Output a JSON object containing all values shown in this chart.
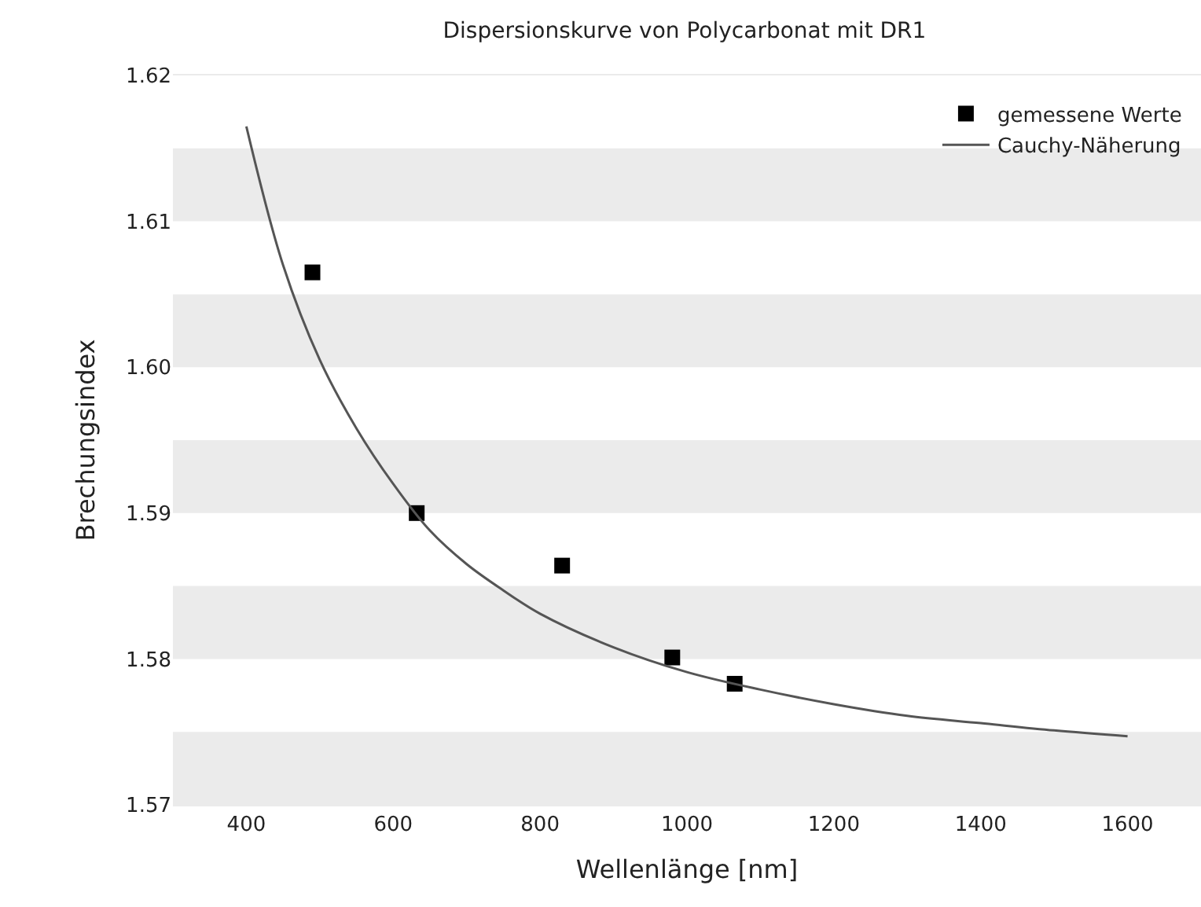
{
  "chart_data": {
    "type": "scatter",
    "title": "Dispersionskurve von Polycarbonat mit DR1",
    "xlabel": "Wellenlänge [nm]",
    "ylabel": "Brechungsindex",
    "xlim": [
      300,
      1700
    ],
    "xticks": [
      400,
      600,
      800,
      1000,
      1200,
      1400,
      1600
    ],
    "ylim": [
      1.57,
      1.62
    ],
    "yticks": [
      {
        "value": 1.57,
        "label": "1.57"
      },
      {
        "value": 1.58,
        "label": "1.58"
      },
      {
        "value": 1.59,
        "label": "1.59"
      },
      {
        "value": 1.6,
        "label": "1.60"
      },
      {
        "value": 1.61,
        "label": "1.61"
      },
      {
        "value": 1.62,
        "label": "1.62"
      }
    ],
    "grid": false,
    "legend": "top right",
    "bands": [
      {
        "axis": "y",
        "from": 1.57,
        "to": 1.575,
        "color": "#ebebeb"
      },
      {
        "axis": "y",
        "from": 1.58,
        "to": 1.585,
        "color": "#ebebeb"
      },
      {
        "axis": "y",
        "from": 1.59,
        "to": 1.595,
        "color": "#ebebeb"
      },
      {
        "axis": "y",
        "from": 1.6,
        "to": 1.605,
        "color": "#ebebeb"
      },
      {
        "axis": "y",
        "from": 1.61,
        "to": 1.615,
        "color": "#ebebeb"
      }
    ],
    "series": [
      {
        "name": "gemessene Werte",
        "marker": "square",
        "color": "#000000",
        "x": [
          490,
          632,
          830,
          980,
          1065
        ],
        "values": [
          1.6065,
          1.59,
          1.5864,
          1.5801,
          1.5783
        ]
      },
      {
        "name": "Cauchy-Näherung",
        "type": "line",
        "marker": "none",
        "line_style": "solid",
        "color": "#555555",
        "x": [
          400,
          450,
          500,
          550,
          600,
          650,
          700,
          750,
          800,
          900,
          1000,
          1100,
          1200,
          1300,
          1400,
          1500,
          1600
        ],
        "values": [
          1.6165,
          1.607,
          1.6005,
          1.5958,
          1.592,
          1.5888,
          1.5865,
          1.5847,
          1.5831,
          1.5808,
          1.5791,
          1.5779,
          1.5769,
          1.5761,
          1.5756,
          1.5751,
          1.5747
        ]
      }
    ]
  }
}
